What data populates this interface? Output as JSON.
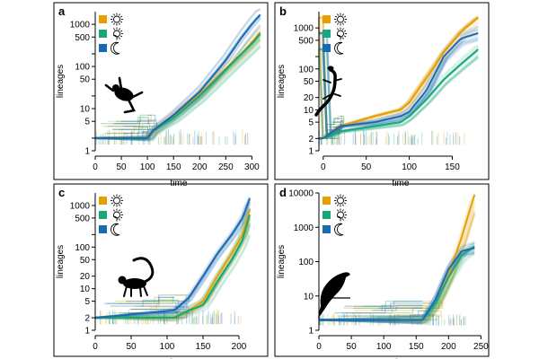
{
  "colors": {
    "day": "#E69F00",
    "twilight": "#17A778",
    "night": "#1B68B3",
    "frame": "#000000",
    "silhouette": "#000000"
  },
  "legend": {
    "items": [
      {
        "key": "day",
        "icon": "sun-icon"
      },
      {
        "key": "twilight",
        "icon": "twilight-sun-icon"
      },
      {
        "key": "night",
        "icon": "moon-icon"
      }
    ]
  },
  "chart_data": [
    {
      "panel": "a",
      "type": "line",
      "animal": "frog-silhouette-icon",
      "xlabel": "time",
      "ylabel": "lineages",
      "xlim": [
        0,
        320
      ],
      "ylim": [
        1,
        2000
      ],
      "yscale": "log",
      "xticks": [
        0,
        50,
        100,
        150,
        200,
        250,
        300
      ],
      "yticks": [
        1,
        2,
        5,
        10,
        20,
        50,
        100,
        200,
        500,
        1000
      ],
      "ytick_labels": [
        "1",
        "",
        "5",
        "10",
        "",
        "50",
        "100",
        "",
        "500",
        "1000"
      ],
      "series": [
        {
          "name": "day",
          "x": [
            0,
            100,
            110,
            150,
            200,
            250,
            280,
            300,
            316
          ],
          "y": [
            2,
            2,
            3,
            7,
            22,
            90,
            200,
            380,
            650
          ]
        },
        {
          "name": "twilight",
          "x": [
            0,
            100,
            110,
            150,
            200,
            250,
            280,
            300,
            316
          ],
          "y": [
            2,
            2,
            3,
            6,
            20,
            85,
            200,
            350,
            600
          ]
        },
        {
          "name": "night",
          "x": [
            0,
            100,
            110,
            150,
            200,
            250,
            280,
            300,
            316
          ],
          "y": [
            2,
            2,
            3,
            7,
            25,
            140,
            480,
            1000,
            1700
          ]
        }
      ]
    },
    {
      "panel": "b",
      "type": "line",
      "animal": "lizard-silhouette-icon",
      "xlabel": "time",
      "ylabel": "lineages",
      "xlim": [
        -5,
        185
      ],
      "ylim": [
        1,
        2500
      ],
      "yscale": "log",
      "xticks": [
        0,
        50,
        100,
        150
      ],
      "yticks": [
        1,
        2,
        5,
        10,
        20,
        50,
        100,
        200,
        500,
        1000
      ],
      "ytick_labels": [
        "1",
        "2",
        "5",
        "10",
        "20",
        "50",
        "100",
        "",
        "500",
        "1000"
      ],
      "series": [
        {
          "name": "day",
          "x": [
            0,
            20,
            60,
            90,
            100,
            120,
            140,
            160,
            180
          ],
          "y": [
            2,
            4,
            7,
            10,
            15,
            60,
            250,
            800,
            1800
          ]
        },
        {
          "name": "twilight",
          "x": [
            0,
            20,
            60,
            90,
            100,
            120,
            140,
            160,
            180
          ],
          "y": [
            2,
            3,
            4,
            5,
            7,
            18,
            55,
            130,
            300
          ]
        },
        {
          "name": "night",
          "x": [
            0,
            20,
            60,
            90,
            100,
            120,
            140,
            160,
            180
          ],
          "y": [
            2,
            4,
            5,
            7,
            9,
            30,
            200,
            550,
            750
          ]
        }
      ]
    },
    {
      "panel": "c",
      "type": "line",
      "animal": "lemur-silhouette-icon",
      "xlabel": "time",
      "ylabel": "lineages",
      "xlim": [
        0,
        225
      ],
      "ylim": [
        1,
        2000
      ],
      "yscale": "log",
      "xticks": [
        0,
        50,
        100,
        150,
        200
      ],
      "yticks": [
        1,
        2,
        5,
        10,
        20,
        50,
        100,
        200,
        500,
        1000
      ],
      "ytick_labels": [
        "1",
        "2",
        "5",
        "10",
        "20",
        "50",
        "100",
        "",
        "500",
        "1000"
      ],
      "series": [
        {
          "name": "day",
          "x": [
            0,
            110,
            130,
            150,
            170,
            190,
            205,
            215
          ],
          "y": [
            2,
            2,
            3,
            5,
            20,
            70,
            200,
            800
          ]
        },
        {
          "name": "twilight",
          "x": [
            0,
            110,
            130,
            150,
            170,
            190,
            205,
            215
          ],
          "y": [
            2,
            2,
            3,
            4,
            15,
            50,
            150,
            600
          ]
        },
        {
          "name": "night",
          "x": [
            0,
            110,
            130,
            150,
            170,
            190,
            205,
            215
          ],
          "y": [
            2,
            3,
            6,
            20,
            70,
            200,
            500,
            1500
          ]
        }
      ]
    },
    {
      "panel": "d",
      "type": "line",
      "animal": "bird-silhouette-icon",
      "xlabel": "time",
      "ylabel": "lineages",
      "xlim": [
        0,
        255
      ],
      "ylim": [
        1,
        10000
      ],
      "yscale": "log",
      "xticks": [
        0,
        50,
        100,
        150,
        200,
        250
      ],
      "yticks": [
        1,
        10,
        100,
        1000,
        10000
      ],
      "ytick_labels": [
        "1",
        "10",
        "100",
        "1000",
        "10000"
      ],
      "series": [
        {
          "name": "day",
          "x": [
            0,
            160,
            180,
            200,
            220,
            240
          ],
          "y": [
            2,
            2,
            6,
            40,
            500,
            9000
          ]
        },
        {
          "name": "twilight",
          "x": [
            0,
            160,
            180,
            200,
            220,
            240
          ],
          "y": [
            2,
            2,
            6,
            35,
            150,
            280
          ]
        },
        {
          "name": "night",
          "x": [
            0,
            160,
            180,
            200,
            220,
            240
          ],
          "y": [
            2,
            2,
            8,
            60,
            200,
            250
          ]
        }
      ]
    }
  ]
}
